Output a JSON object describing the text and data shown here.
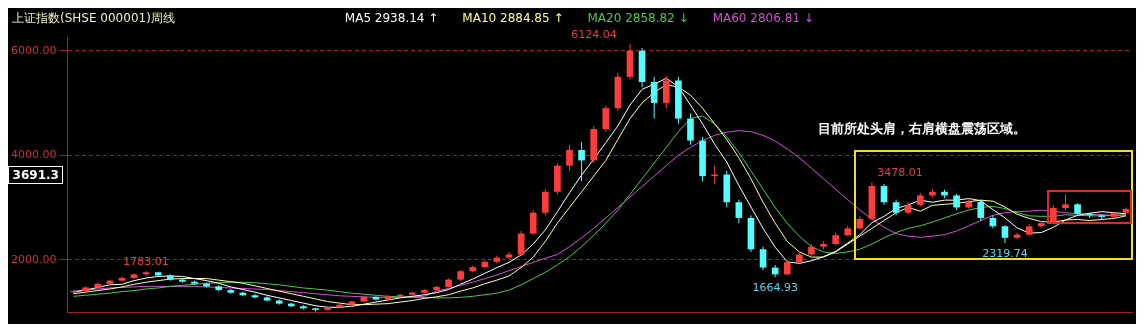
{
  "chart_data": {
    "type": "candlestick",
    "title": "上证指数(SHSE 000001)周线",
    "categories": [
      null,
      null,
      null,
      null,
      null,
      null,
      null,
      null,
      null,
      null,
      null,
      null,
      null,
      null,
      null,
      null,
      null,
      null,
      null,
      null,
      null,
      null,
      null,
      null,
      null,
      null,
      null,
      null,
      null,
      null,
      null,
      null,
      null,
      null,
      null,
      null,
      null,
      null,
      null,
      null,
      null,
      null,
      null,
      null,
      null,
      null,
      null,
      null,
      null,
      null,
      null,
      null,
      null,
      null,
      null,
      null,
      null,
      null,
      null,
      null,
      null,
      null,
      null,
      null,
      null,
      null,
      null,
      null,
      null,
      null,
      null,
      null,
      null,
      null,
      null,
      null,
      null,
      null,
      null,
      null,
      null,
      null,
      null,
      null,
      null,
      null,
      null,
      null
    ],
    "ohlc": [
      [
        1380,
        1420,
        1360,
        1400
      ],
      [
        1400,
        1490,
        1390,
        1470
      ],
      [
        1470,
        1560,
        1450,
        1540
      ],
      [
        1540,
        1620,
        1520,
        1600
      ],
      [
        1600,
        1680,
        1580,
        1650
      ],
      [
        1650,
        1740,
        1630,
        1720
      ],
      [
        1720,
        1783.01,
        1690,
        1760
      ],
      [
        1760,
        1770,
        1680,
        1700
      ],
      [
        1700,
        1720,
        1600,
        1620
      ],
      [
        1620,
        1650,
        1560,
        1580
      ],
      [
        1580,
        1600,
        1520,
        1540
      ],
      [
        1540,
        1560,
        1470,
        1490
      ],
      [
        1490,
        1510,
        1400,
        1420
      ],
      [
        1420,
        1440,
        1350,
        1370
      ],
      [
        1370,
        1390,
        1300,
        1320
      ],
      [
        1320,
        1340,
        1260,
        1280
      ],
      [
        1280,
        1300,
        1200,
        1220
      ],
      [
        1220,
        1240,
        1140,
        1160
      ],
      [
        1160,
        1180,
        1090,
        1110
      ],
      [
        1110,
        1130,
        1050,
        1070
      ],
      [
        1070,
        1080,
        1010,
        1040
      ],
      [
        1040,
        1110,
        1030,
        1090
      ],
      [
        1090,
        1160,
        1080,
        1140
      ],
      [
        1140,
        1220,
        1130,
        1200
      ],
      [
        1200,
        1310,
        1190,
        1290
      ],
      [
        1290,
        1300,
        1220,
        1240
      ],
      [
        1240,
        1320,
        1230,
        1300
      ],
      [
        1300,
        1350,
        1280,
        1330
      ],
      [
        1330,
        1390,
        1310,
        1370
      ],
      [
        1370,
        1440,
        1350,
        1420
      ],
      [
        1420,
        1500,
        1400,
        1480
      ],
      [
        1480,
        1640,
        1470,
        1620
      ],
      [
        1620,
        1800,
        1600,
        1780
      ],
      [
        1780,
        1890,
        1760,
        1860
      ],
      [
        1860,
        1990,
        1840,
        1960
      ],
      [
        1960,
        2080,
        1930,
        2040
      ],
      [
        2040,
        2150,
        2000,
        2100
      ],
      [
        2100,
        2550,
        2080,
        2500
      ],
      [
        2500,
        2950,
        2480,
        2900
      ],
      [
        2900,
        3350,
        2850,
        3300
      ],
      [
        3300,
        3850,
        3250,
        3800
      ],
      [
        3800,
        4200,
        3700,
        4100
      ],
      [
        4100,
        4250,
        3500,
        3900
      ],
      [
        3900,
        4550,
        3850,
        4500
      ],
      [
        4500,
        4950,
        4450,
        4900
      ],
      [
        4900,
        5580,
        4850,
        5500
      ],
      [
        5500,
        6124.04,
        5450,
        6000
      ],
      [
        6000,
        6050,
        5300,
        5400
      ],
      [
        5400,
        5500,
        4700,
        5000
      ],
      [
        5000,
        5520,
        4900,
        5430
      ],
      [
        5430,
        5500,
        4600,
        4700
      ],
      [
        4700,
        4800,
        4200,
        4280
      ],
      [
        4280,
        4350,
        3500,
        3600
      ],
      [
        3600,
        3800,
        3450,
        3630
      ],
      [
        3630,
        3700,
        3000,
        3100
      ],
      [
        3100,
        3150,
        2700,
        2800
      ],
      [
        2800,
        2850,
        2150,
        2200
      ],
      [
        2200,
        2250,
        1800,
        1850
      ],
      [
        1850,
        1900,
        1664.93,
        1720
      ],
      [
        1720,
        2000,
        1700,
        1950
      ],
      [
        1950,
        2150,
        1930,
        2100
      ],
      [
        2100,
        2300,
        2080,
        2250
      ],
      [
        2250,
        2350,
        2200,
        2300
      ],
      [
        2300,
        2520,
        2280,
        2470
      ],
      [
        2470,
        2650,
        2450,
        2600
      ],
      [
        2600,
        2830,
        2580,
        2780
      ],
      [
        2780,
        3478.01,
        2760,
        3410
      ],
      [
        3410,
        3450,
        3050,
        3100
      ],
      [
        3100,
        3150,
        2850,
        2900
      ],
      [
        2900,
        3100,
        2880,
        3050
      ],
      [
        3050,
        3280,
        3020,
        3230
      ],
      [
        3230,
        3350,
        3200,
        3300
      ],
      [
        3300,
        3340,
        3180,
        3230
      ],
      [
        3230,
        3260,
        2950,
        3000
      ],
      [
        3000,
        3150,
        2980,
        3110
      ],
      [
        3110,
        3130,
        2750,
        2800
      ],
      [
        2800,
        2850,
        2600,
        2640
      ],
      [
        2640,
        2660,
        2319.74,
        2420
      ],
      [
        2420,
        2520,
        2400,
        2480
      ],
      [
        2480,
        2680,
        2460,
        2640
      ],
      [
        2640,
        2740,
        2620,
        2700
      ],
      [
        2700,
        3050,
        2680,
        2990
      ],
      [
        2990,
        3250,
        2950,
        3060
      ],
      [
        3060,
        3080,
        2850,
        2880
      ],
      [
        2880,
        2900,
        2800,
        2850
      ],
      [
        2850,
        2870,
        2780,
        2820
      ],
      [
        2820,
        2920,
        2800,
        2900
      ],
      [
        2900,
        3000,
        2880,
        2970
      ]
    ],
    "colors": [
      "#ff3c3c",
      "#ff3c3c",
      "#ff3c3c",
      "#ff3c3c",
      "#ff3c3c",
      "#ff3c3c",
      "#ff3c3c",
      "#54fcfc",
      "#54fcfc",
      "#54fcfc",
      "#54fcfc",
      "#54fcfc",
      "#54fcfc",
      "#54fcfc",
      "#54fcfc",
      "#54fcfc",
      "#54fcfc",
      "#54fcfc",
      "#54fcfc",
      "#54fcfc",
      "#54fcfc",
      "#ff3c3c",
      "#ff3c3c",
      "#ff3c3c",
      "#ff3c3c",
      "#54fcfc",
      "#ff3c3c",
      "#ff3c3c",
      "#ff3c3c",
      "#ff3c3c",
      "#ff3c3c",
      "#ff3c3c",
      "#ff3c3c",
      "#ff3c3c",
      "#ff3c3c",
      "#ff3c3c",
      "#ff3c3c",
      "#ff3c3c",
      "#ff3c3c",
      "#ff3c3c",
      "#ff3c3c",
      "#ff3c3c",
      "#54fcfc",
      "#ff3c3c",
      "#ff3c3c",
      "#ff3c3c",
      "#ff3c3c",
      "#54fcfc",
      "#54fcfc",
      "#ff3c3c",
      "#54fcfc",
      "#54fcfc",
      "#54fcfc",
      "#ff3c3c",
      "#54fcfc",
      "#54fcfc",
      "#54fcfc",
      "#54fcfc",
      "#54fcfc",
      "#ff3c3c",
      "#ff3c3c",
      "#ff3c3c",
      "#ff3c3c",
      "#ff3c3c",
      "#ff3c3c",
      "#ff3c3c",
      "#ff3c3c",
      "#54fcfc",
      "#54fcfc",
      "#ff3c3c",
      "#ff3c3c",
      "#ff3c3c",
      "#54fcfc",
      "#54fcfc",
      "#ff3c3c",
      "#54fcfc",
      "#54fcfc",
      "#54fcfc",
      "#ff3c3c",
      "#ff3c3c",
      "#ff3c3c",
      "#ff3c3c",
      "#ff3c3c",
      "#54fcfc",
      "#54fcfc",
      "#54fcfc",
      "#ff3c3c",
      "#ff3c3c"
    ],
    "series": [
      {
        "type": "line",
        "name": "MA5 2938.14 ↑",
        "color": "#ffffff",
        "values": [
          1380,
          1420,
          1470,
          1520,
          1530,
          1600,
          1650,
          1680,
          1690,
          1680,
          1640,
          1600,
          1550,
          1480,
          1430,
          1380,
          1320,
          1270,
          1220,
          1170,
          1120,
          1090,
          1090,
          1110,
          1150,
          1190,
          1230,
          1270,
          1300,
          1330,
          1370,
          1430,
          1530,
          1630,
          1740,
          1850,
          1950,
          2090,
          2300,
          2570,
          2920,
          3280,
          3620,
          3920,
          4240,
          4560,
          4960,
          5260,
          5360,
          5470,
          5310,
          4960,
          4600,
          4210,
          3870,
          3420,
          3010,
          2600,
          2240,
          1960,
          1930,
          1980,
          2060,
          2160,
          2320,
          2480,
          2710,
          2830,
          2980,
          3050,
          3140,
          3100,
          3140,
          3140,
          3170,
          3130,
          2960,
          2800,
          2610,
          2510,
          2520,
          2620,
          2760,
          2850,
          2890,
          2920,
          2900,
          2880
        ]
      },
      {
        "type": "line",
        "name": "MA10 2884.85 ↑",
        "color": "#ffffa0",
        "values": [
          1350,
          1380,
          1410,
          1440,
          1480,
          1530,
          1570,
          1600,
          1630,
          1640,
          1640,
          1640,
          1610,
          1580,
          1550,
          1500,
          1450,
          1400,
          1350,
          1300,
          1250,
          1200,
          1170,
          1140,
          1140,
          1150,
          1160,
          1190,
          1220,
          1260,
          1290,
          1330,
          1400,
          1460,
          1540,
          1610,
          1690,
          1850,
          2050,
          2350,
          2700,
          3000,
          3300,
          3600,
          3900,
          4300,
          4700,
          5000,
          5200,
          5350,
          5300,
          5150,
          4900,
          4600,
          4300,
          3950,
          3550,
          3100,
          2700,
          2350,
          2150,
          2050,
          2050,
          2150,
          2300,
          2450,
          2600,
          2750,
          2900,
          3000,
          2930,
          3040,
          3060,
          3080,
          3110,
          3140,
          3120,
          3010,
          2870,
          2790,
          2730,
          2720,
          2760,
          2770,
          2750,
          2770,
          2790,
          2840
        ]
      },
      {
        "type": "line",
        "name": "MA20 2858.82 ↓",
        "color": "#4cc84c",
        "values": [
          1300,
          1320,
          1340,
          1360,
          1390,
          1410,
          1440,
          1460,
          1490,
          1510,
          1530,
          1550,
          1560,
          1570,
          1570,
          1560,
          1540,
          1520,
          1490,
          1460,
          1440,
          1420,
          1390,
          1360,
          1340,
          1320,
          1300,
          1290,
          1280,
          1280,
          1270,
          1270,
          1280,
          1300,
          1330,
          1360,
          1420,
          1520,
          1640,
          1760,
          1900,
          2060,
          2250,
          2470,
          2700,
          2950,
          3250,
          3550,
          3850,
          4150,
          4450,
          4700,
          4750,
          4600,
          4350,
          4050,
          3700,
          3350,
          3000,
          2700,
          2450,
          2250,
          2150,
          2120,
          2150,
          2200,
          2300,
          2420,
          2520,
          2600,
          2650,
          2720,
          2800,
          2880,
          2950,
          3000,
          3020,
          2980,
          2900,
          2840,
          2830,
          2830,
          2860,
          2850,
          2840,
          2840,
          2850,
          2860
        ]
      },
      {
        "type": "line",
        "name": "MA60 2806.81 ↓",
        "color": "#d050d0",
        "values": [
          1400,
          1420,
          1440,
          1460,
          1470,
          1480,
          1490,
          1490,
          1490,
          1490,
          1490,
          1480,
          1470,
          1460,
          1450,
          1440,
          1430,
          1410,
          1390,
          1370,
          1350,
          1330,
          1310,
          1300,
          1290,
          1280,
          1280,
          1280,
          1290,
          1300,
          1400,
          1450,
          1510,
          1570,
          1640,
          1710,
          1790,
          1870,
          1950,
          2030,
          2100,
          2250,
          2420,
          2600,
          2800,
          3000,
          3200,
          3400,
          3600,
          3800,
          4000,
          4150,
          4280,
          4380,
          4440,
          4470,
          4450,
          4380,
          4270,
          4120,
          3950,
          3750,
          3550,
          3350,
          3150,
          2950,
          2780,
          2620,
          2500,
          2450,
          2430,
          2450,
          2480,
          2550,
          2650,
          2750,
          2850,
          2900,
          2920,
          2930,
          2950,
          2930,
          2900,
          2880,
          2870,
          2860,
          2850,
          2850
        ]
      }
    ],
    "ylim": [
      1000,
      6250
    ],
    "yticks": [
      {
        "value": 2000,
        "label": "2000.00"
      },
      {
        "value": 4000,
        "label": "4000.00"
      },
      {
        "value": 6000,
        "label": "6000.00"
      }
    ],
    "grid": "y",
    "legend": "top",
    "annotations": [
      "6124.04",
      "1783.01",
      "1664.93",
      "3478.01",
      "2319.74",
      "3691.3",
      "目前所处头肩，右肩横盘震荡区域。"
    ]
  }
}
